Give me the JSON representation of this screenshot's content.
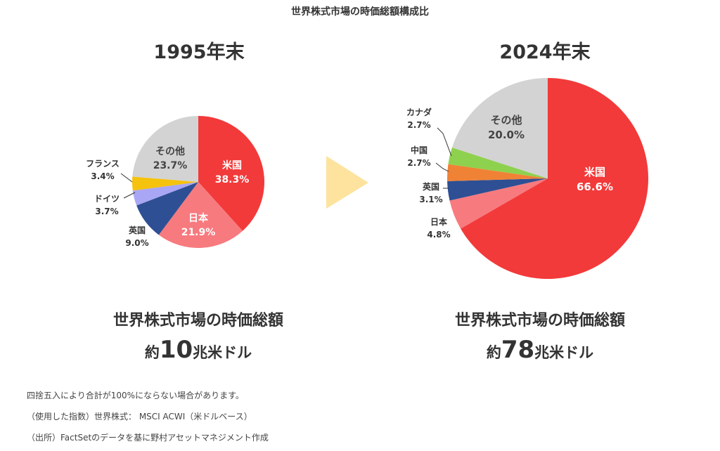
{
  "title": "世界株式市場の時価総額構成比",
  "colors": {
    "米国": "#f23a3a",
    "日本": "#f77a7f",
    "英国": "#2e4f93",
    "ドイツ": "#a9a6f5",
    "フランス": "#f5c20e",
    "中国": "#f08236",
    "カナダ": "#8ed14e",
    "その他": "#d3d3d3",
    "arrow": "#fde39e"
  },
  "chart_data": [
    {
      "type": "pie",
      "title": "1995年末",
      "slices": [
        {
          "label": "米国",
          "value": 38.3,
          "text": "38.3%"
        },
        {
          "label": "日本",
          "value": 21.9,
          "text": "21.9%"
        },
        {
          "label": "英国",
          "value": 9.0,
          "text": "9.0%"
        },
        {
          "label": "ドイツ",
          "value": 3.7,
          "text": "3.7%"
        },
        {
          "label": "フランス",
          "value": 3.4,
          "text": "3.4%"
        },
        {
          "label": "その他",
          "value": 23.7,
          "text": "23.7%"
        }
      ]
    },
    {
      "type": "pie",
      "title": "2024年末",
      "slices": [
        {
          "label": "米国",
          "value": 66.6,
          "text": "66.6%"
        },
        {
          "label": "日本",
          "value": 4.8,
          "text": "4.8%"
        },
        {
          "label": "英国",
          "value": 3.1,
          "text": "3.1%"
        },
        {
          "label": "中国",
          "value": 2.7,
          "text": "2.7%"
        },
        {
          "label": "カナダ",
          "value": 2.7,
          "text": "2.7%"
        },
        {
          "label": "その他",
          "value": 20.0,
          "text": "20.0%"
        }
      ]
    }
  ],
  "totals": {
    "label": "世界株式市場の時価総額",
    "left": {
      "prefix": "約",
      "number": "10",
      "suffix": "兆米ドル"
    },
    "right": {
      "prefix": "約",
      "number": "78",
      "suffix": "兆米ドル"
    }
  },
  "notes": [
    "四捨五入により合計が100%にならない場合があります。",
    "（使用した指数）世界株式： MSCI ACWI（米ドルベース）",
    "（出所）FactSetのデータを基に野村アセットマネジメント作成"
  ]
}
